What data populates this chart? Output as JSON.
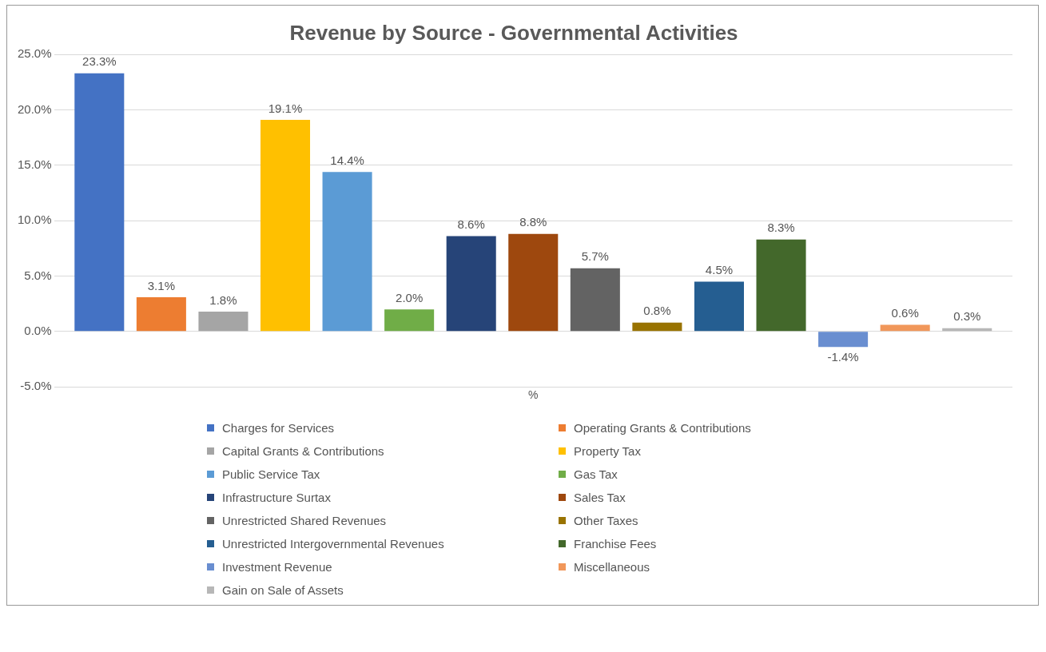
{
  "chart_data": {
    "type": "bar",
    "title": "Revenue by Source - Governmental Activities",
    "categories": [
      "%"
    ],
    "ylim": [
      -5,
      25
    ],
    "yticks": [
      {
        "value": -5,
        "label": "-5.0%"
      },
      {
        "value": 0,
        "label": "0.0%"
      },
      {
        "value": 5,
        "label": "5.0%"
      },
      {
        "value": 10,
        "label": "10.0%"
      },
      {
        "value": 15,
        "label": "15.0%"
      },
      {
        "value": 20,
        "label": "20.0%"
      },
      {
        "value": 25,
        "label": "25.0%"
      }
    ],
    "grid": "y",
    "legend": "bottom",
    "series": [
      {
        "name": "Charges for Services",
        "color": "#4472c4",
        "values": [
          23.3
        ],
        "value_labels": [
          "23.3%"
        ]
      },
      {
        "name": "Operating Grants & Contributions",
        "color": "#ed7d31",
        "values": [
          3.1
        ],
        "value_labels": [
          "3.1%"
        ]
      },
      {
        "name": "Capital Grants & Contributions",
        "color": "#a5a5a5",
        "values": [
          1.8
        ],
        "value_labels": [
          "1.8%"
        ]
      },
      {
        "name": "Property Tax",
        "color": "#ffc000",
        "values": [
          19.1
        ],
        "value_labels": [
          "19.1%"
        ]
      },
      {
        "name": "Public Service Tax",
        "color": "#5b9bd5",
        "values": [
          14.4
        ],
        "value_labels": [
          "14.4%"
        ]
      },
      {
        "name": "Gas Tax",
        "color": "#70ad47",
        "values": [
          2.0
        ],
        "value_labels": [
          "2.0%"
        ]
      },
      {
        "name": "Infrastructure Surtax",
        "color": "#264478",
        "values": [
          8.6
        ],
        "value_labels": [
          "8.6%"
        ]
      },
      {
        "name": "Sales Tax",
        "color": "#9e480e",
        "values": [
          8.8
        ],
        "value_labels": [
          "8.8%"
        ]
      },
      {
        "name": "Unrestricted Shared Revenues",
        "color": "#636363",
        "values": [
          5.7
        ],
        "value_labels": [
          "5.7%"
        ]
      },
      {
        "name": "Other Taxes",
        "color": "#997300",
        "values": [
          0.8
        ],
        "value_labels": [
          "0.8%"
        ]
      },
      {
        "name": "Unrestricted Intergovernmental Revenues",
        "color": "#255e91",
        "values": [
          4.5
        ],
        "value_labels": [
          "4.5%"
        ]
      },
      {
        "name": "Franchise Fees",
        "color": "#43682b",
        "values": [
          8.3
        ],
        "value_labels": [
          "8.3%"
        ]
      },
      {
        "name": "Investment Revenue",
        "color": "#698ed0",
        "values": [
          -1.4
        ],
        "value_labels": [
          "-1.4%"
        ]
      },
      {
        "name": "Miscellaneous",
        "color": "#f1975a",
        "values": [
          0.6
        ],
        "value_labels": [
          "0.6%"
        ]
      },
      {
        "name": "Gain on Sale of Assets",
        "color": "#b7b7b7",
        "values": [
          0.3
        ],
        "value_labels": [
          "0.3%"
        ]
      }
    ]
  }
}
